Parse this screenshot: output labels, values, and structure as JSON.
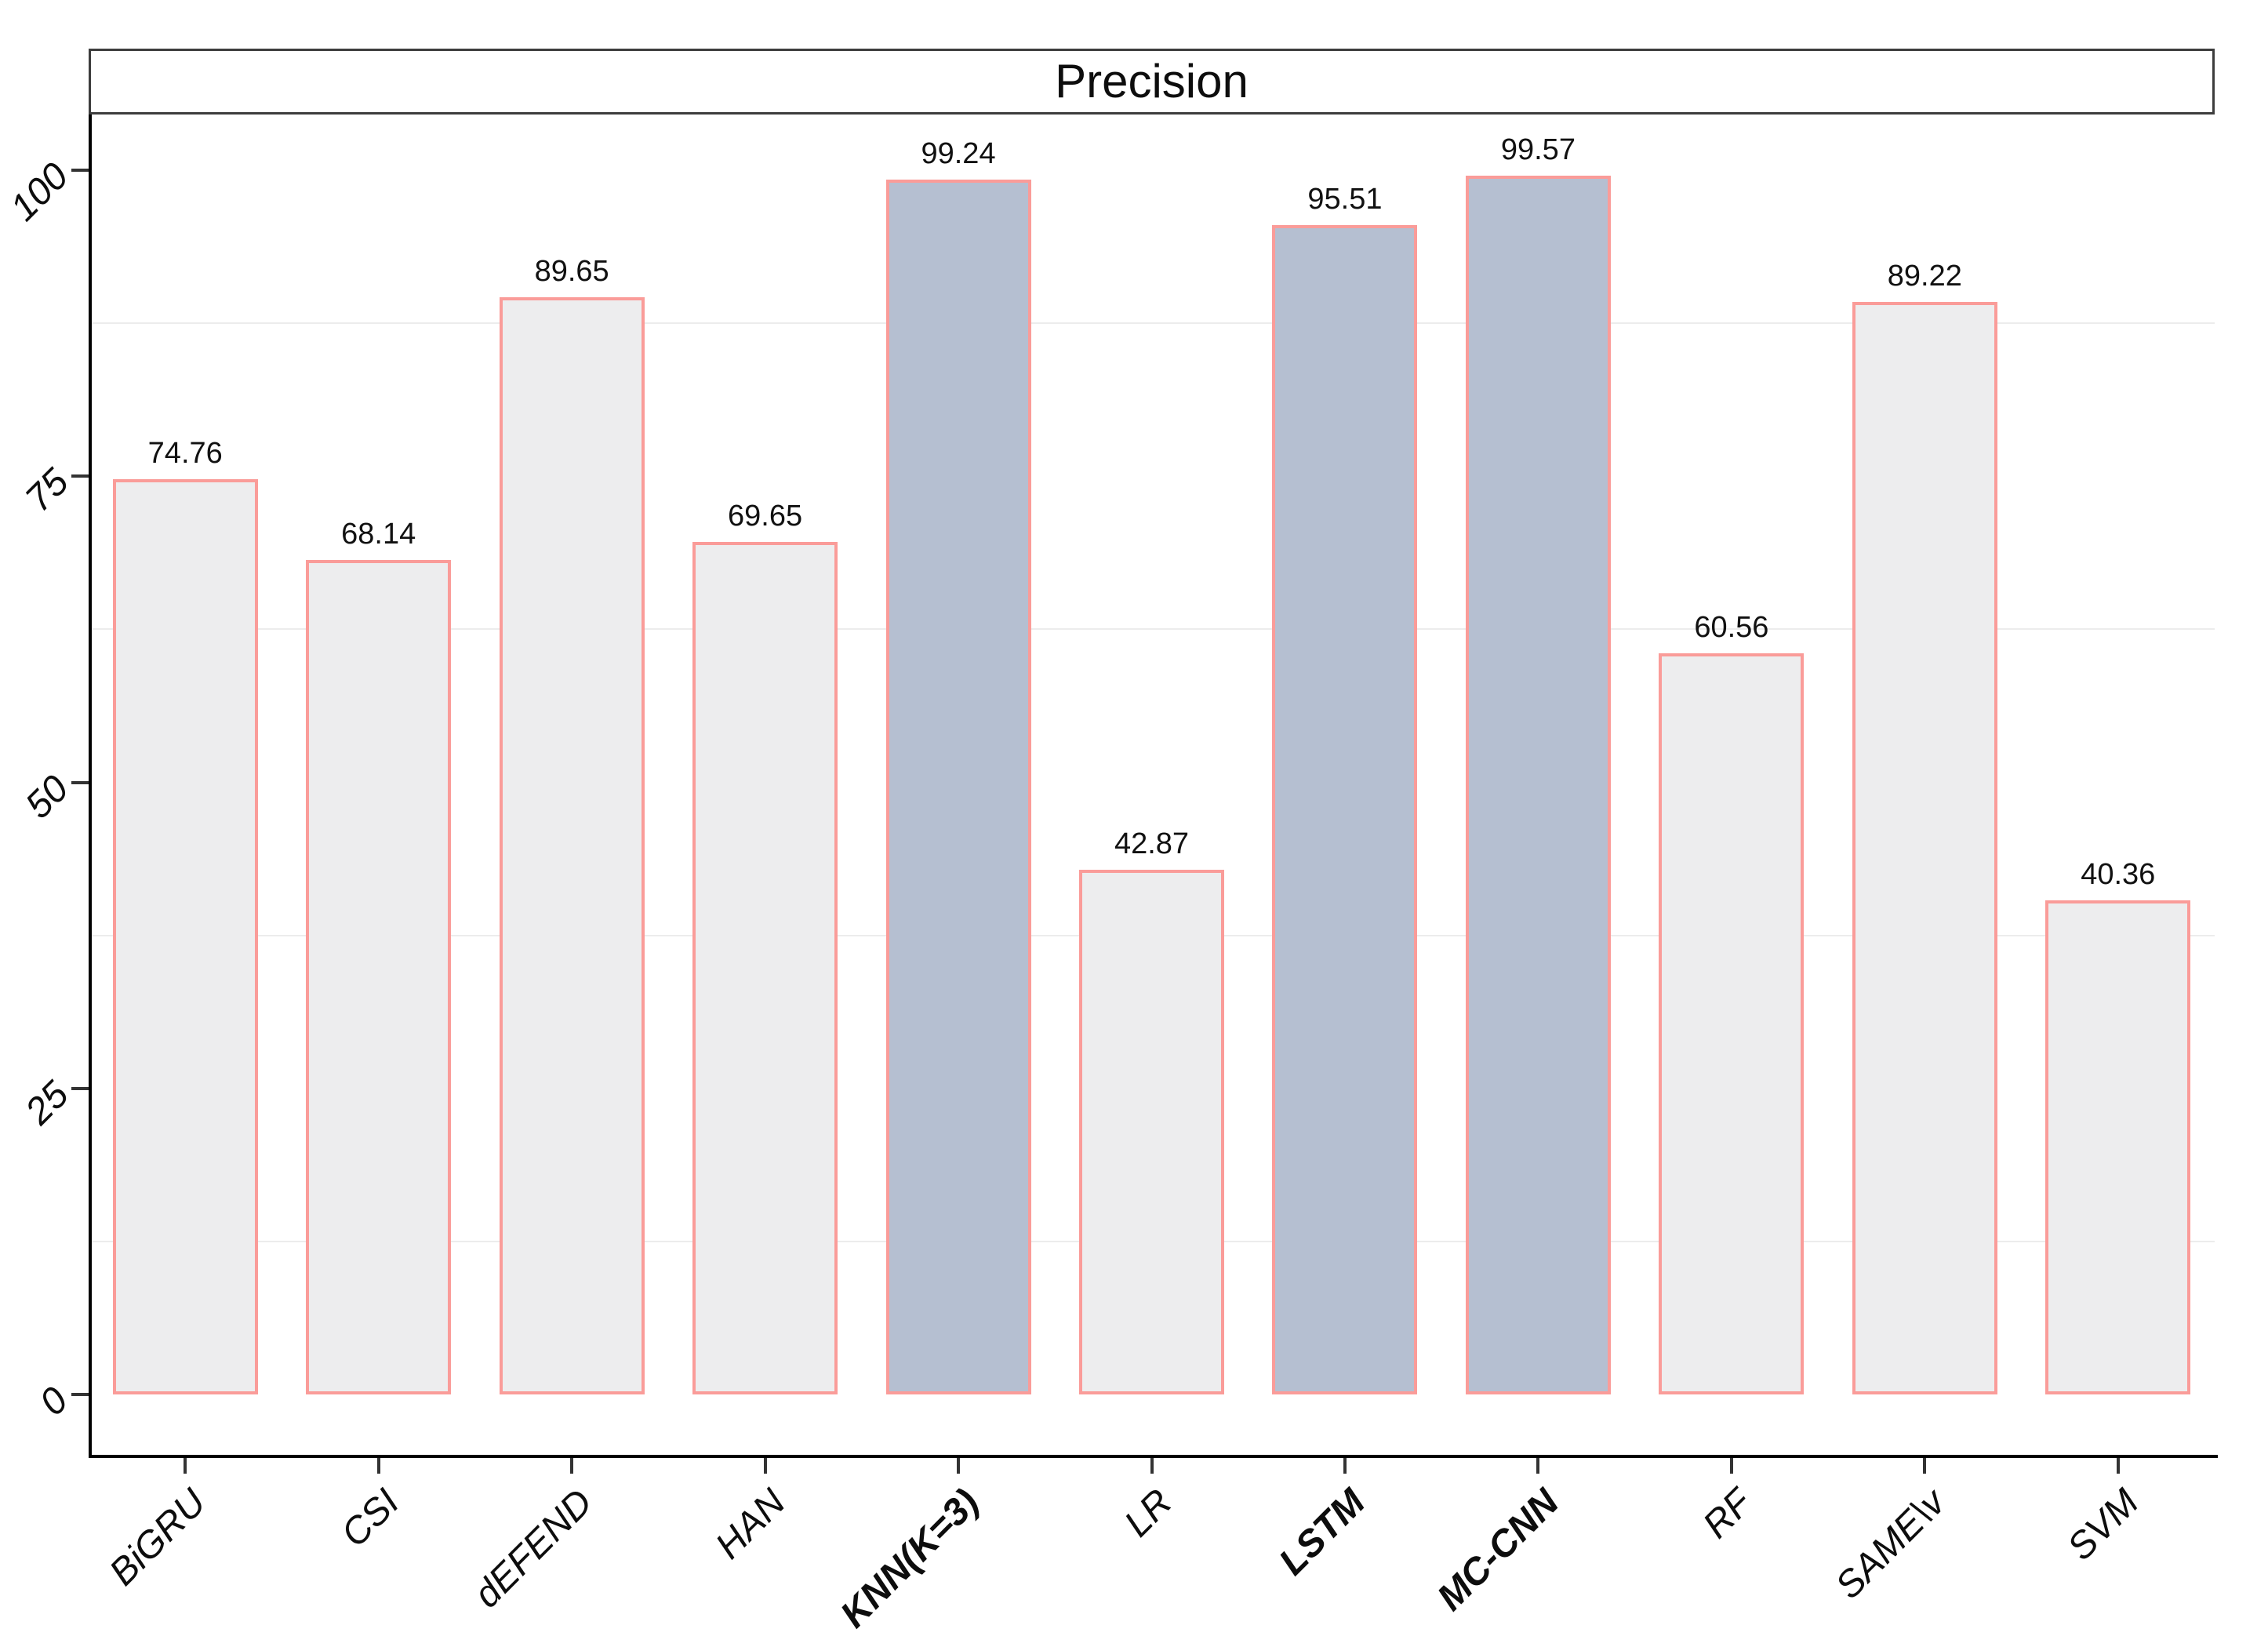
{
  "strip": {
    "title": "Precision"
  },
  "chart_data": {
    "type": "bar",
    "title": "Precision",
    "xlabel": "",
    "ylabel": "",
    "categories": [
      "BiGRU",
      "CSI",
      "dEFEND",
      "HAN",
      "KNN(K=3)",
      "LR",
      "LSTM",
      "MC-CNN",
      "RF",
      "SAME\\v",
      "SVM"
    ],
    "values": [
      74.76,
      68.14,
      89.65,
      69.65,
      99.24,
      42.87,
      95.51,
      99.57,
      60.56,
      89.22,
      40.36
    ],
    "value_labels": [
      "74.76",
      "68.14",
      "89.65",
      "69.65",
      "99.24",
      "42.87",
      "95.51",
      "99.57",
      "60.56",
      "89.22",
      "40.36"
    ],
    "highlight_categories": [
      "KNN(K=3)",
      "LSTM",
      "MC-CNN"
    ],
    "y_ticks": [
      0,
      25,
      50,
      75,
      100
    ],
    "minor_gridlines": [
      12.5,
      37.5,
      62.5,
      87.5
    ],
    "ylim": [
      -4.9,
      104.6
    ],
    "bar_width_fraction": 0.75,
    "grid": "minor-only",
    "legend": "none",
    "colors": {
      "bar_fill": "#EDEDEE",
      "highlight_fill": "#B5BFD1",
      "bar_border": "#FA9C99",
      "axis": "#000000",
      "tick": "#333333",
      "minor_grid": "#ECECEC",
      "strip_border": "#3D3D3D",
      "text": "#000000"
    }
  }
}
